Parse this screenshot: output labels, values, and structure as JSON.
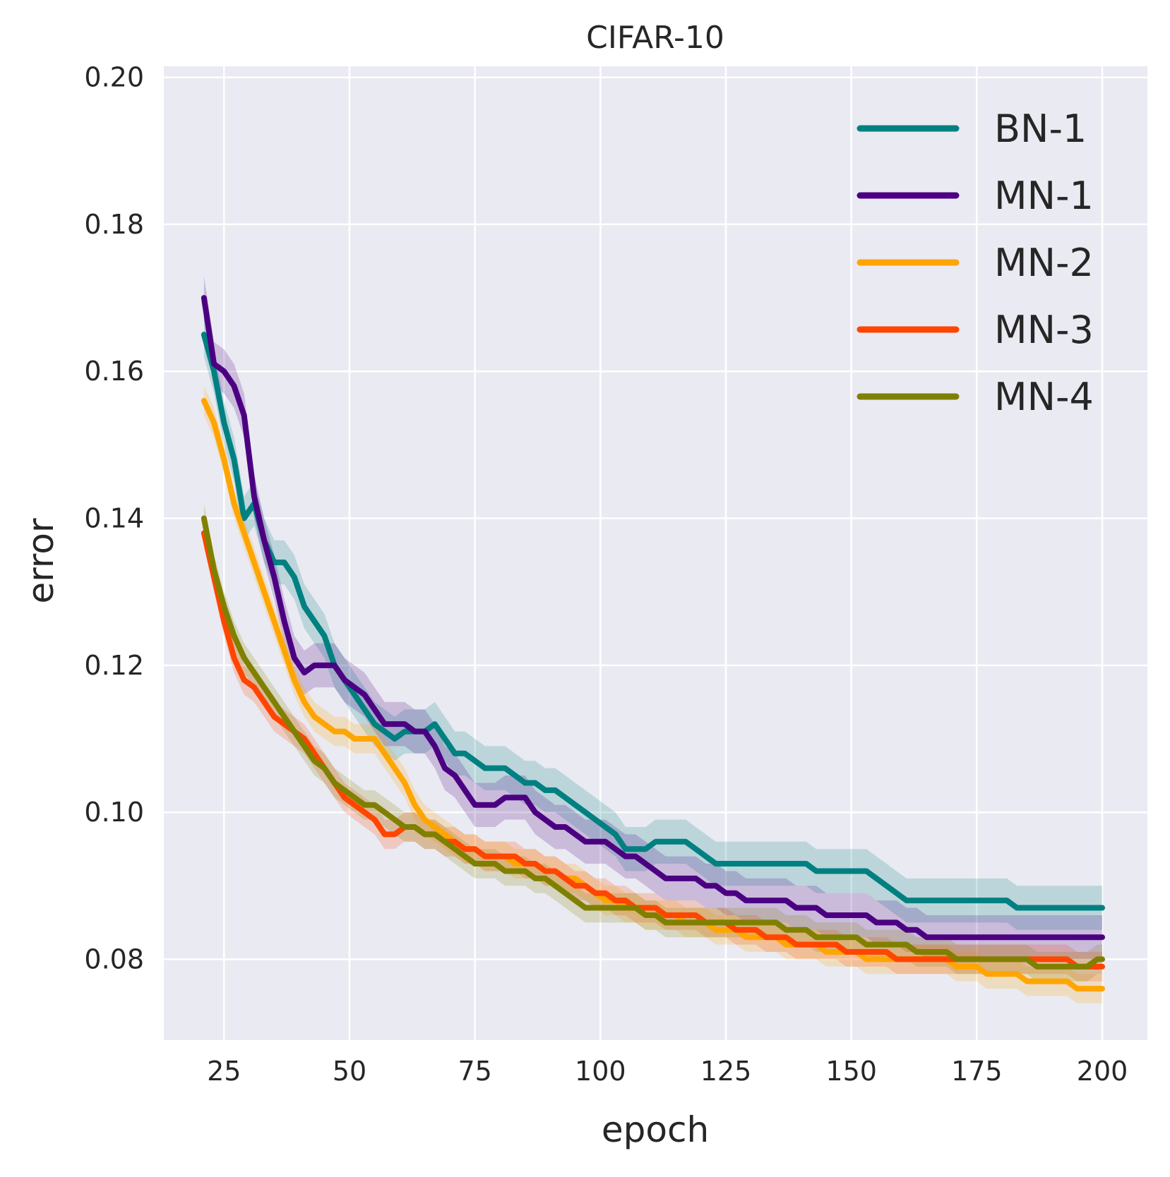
{
  "chart_data": {
    "type": "line",
    "title": "CIFAR-10",
    "xlabel": "epoch",
    "ylabel": "error",
    "xlim": [
      13,
      209
    ],
    "ylim": [
      0.069,
      0.2015
    ],
    "xticks": [
      25,
      50,
      75,
      100,
      125,
      150,
      175,
      200
    ],
    "xtick_labels": [
      "25",
      "50",
      "75",
      "100",
      "125",
      "150",
      "175",
      "200"
    ],
    "yticks": [
      0.08,
      0.1,
      0.12,
      0.14,
      0.16,
      0.18,
      0.2
    ],
    "ytick_labels": [
      "0.08",
      "0.10",
      "0.12",
      "0.14",
      "0.16",
      "0.18",
      "0.20"
    ],
    "grid": true,
    "legend_position": "top-right",
    "x": [
      21,
      23,
      25,
      27,
      29,
      31,
      33,
      35,
      37,
      39,
      41,
      43,
      45,
      47,
      49,
      51,
      53,
      55,
      57,
      59,
      61,
      63,
      65,
      67,
      69,
      71,
      73,
      75,
      77,
      79,
      81,
      83,
      85,
      87,
      89,
      91,
      93,
      95,
      97,
      99,
      101,
      103,
      105,
      107,
      109,
      111,
      113,
      115,
      117,
      119,
      121,
      123,
      125,
      127,
      129,
      131,
      133,
      135,
      137,
      139,
      141,
      143,
      145,
      147,
      149,
      151,
      153,
      155,
      157,
      159,
      161,
      163,
      165,
      167,
      169,
      171,
      173,
      175,
      177,
      179,
      181,
      183,
      185,
      187,
      189,
      191,
      193,
      195,
      197,
      199,
      200
    ],
    "series": [
      {
        "name": "BN-1",
        "color": "#008080",
        "band": 0.003,
        "values": [
          0.165,
          0.16,
          0.153,
          0.148,
          0.14,
          0.142,
          0.137,
          0.134,
          0.134,
          0.132,
          0.128,
          0.126,
          0.124,
          0.12,
          0.118,
          0.116,
          0.114,
          0.112,
          0.111,
          0.11,
          0.111,
          0.111,
          0.111,
          0.112,
          0.11,
          0.108,
          0.108,
          0.107,
          0.106,
          0.106,
          0.106,
          0.105,
          0.104,
          0.104,
          0.103,
          0.103,
          0.102,
          0.101,
          0.1,
          0.099,
          0.098,
          0.097,
          0.095,
          0.095,
          0.095,
          0.096,
          0.096,
          0.096,
          0.096,
          0.095,
          0.094,
          0.093,
          0.093,
          0.093,
          0.093,
          0.093,
          0.093,
          0.093,
          0.093,
          0.093,
          0.093,
          0.092,
          0.092,
          0.092,
          0.092,
          0.092,
          0.092,
          0.091,
          0.09,
          0.089,
          0.088,
          0.088,
          0.088,
          0.088,
          0.088,
          0.088,
          0.088,
          0.088,
          0.088,
          0.088,
          0.088,
          0.087,
          0.087,
          0.087,
          0.087,
          0.087,
          0.087,
          0.087,
          0.087,
          0.087,
          0.087
        ]
      },
      {
        "name": "MN-1",
        "color": "#4B0082",
        "band": 0.003,
        "values": [
          0.17,
          0.161,
          0.16,
          0.158,
          0.154,
          0.143,
          0.137,
          0.132,
          0.126,
          0.121,
          0.119,
          0.12,
          0.12,
          0.12,
          0.118,
          0.117,
          0.116,
          0.114,
          0.112,
          0.112,
          0.112,
          0.111,
          0.111,
          0.109,
          0.106,
          0.105,
          0.103,
          0.101,
          0.101,
          0.101,
          0.102,
          0.102,
          0.102,
          0.1,
          0.099,
          0.098,
          0.098,
          0.097,
          0.096,
          0.096,
          0.096,
          0.095,
          0.094,
          0.094,
          0.093,
          0.092,
          0.091,
          0.091,
          0.091,
          0.091,
          0.09,
          0.09,
          0.089,
          0.089,
          0.088,
          0.088,
          0.088,
          0.088,
          0.088,
          0.087,
          0.087,
          0.087,
          0.086,
          0.086,
          0.086,
          0.086,
          0.086,
          0.085,
          0.085,
          0.085,
          0.084,
          0.084,
          0.083,
          0.083,
          0.083,
          0.083,
          0.083,
          0.083,
          0.083,
          0.083,
          0.083,
          0.083,
          0.083,
          0.083,
          0.083,
          0.083,
          0.083,
          0.083,
          0.083,
          0.083,
          0.083
        ]
      },
      {
        "name": "MN-2",
        "color": "#FFA500",
        "band": 0.002,
        "values": [
          0.156,
          0.153,
          0.148,
          0.142,
          0.138,
          0.134,
          0.13,
          0.126,
          0.122,
          0.118,
          0.115,
          0.113,
          0.112,
          0.111,
          0.111,
          0.11,
          0.11,
          0.11,
          0.108,
          0.106,
          0.104,
          0.101,
          0.099,
          0.098,
          0.097,
          0.096,
          0.095,
          0.095,
          0.094,
          0.094,
          0.094,
          0.093,
          0.093,
          0.093,
          0.092,
          0.092,
          0.091,
          0.091,
          0.09,
          0.089,
          0.088,
          0.088,
          0.087,
          0.087,
          0.086,
          0.086,
          0.086,
          0.086,
          0.085,
          0.085,
          0.085,
          0.084,
          0.084,
          0.084,
          0.083,
          0.083,
          0.083,
          0.083,
          0.082,
          0.082,
          0.082,
          0.082,
          0.081,
          0.081,
          0.081,
          0.081,
          0.08,
          0.08,
          0.08,
          0.08,
          0.08,
          0.08,
          0.08,
          0.08,
          0.08,
          0.079,
          0.079,
          0.079,
          0.078,
          0.078,
          0.078,
          0.078,
          0.077,
          0.077,
          0.077,
          0.077,
          0.077,
          0.076,
          0.076,
          0.076,
          0.076
        ]
      },
      {
        "name": "MN-3",
        "color": "#FF4500",
        "band": 0.002,
        "values": [
          0.138,
          0.132,
          0.126,
          0.121,
          0.118,
          0.117,
          0.115,
          0.113,
          0.112,
          0.111,
          0.11,
          0.108,
          0.106,
          0.104,
          0.102,
          0.101,
          0.1,
          0.099,
          0.097,
          0.097,
          0.098,
          0.098,
          0.097,
          0.097,
          0.096,
          0.096,
          0.095,
          0.095,
          0.094,
          0.094,
          0.094,
          0.094,
          0.093,
          0.093,
          0.092,
          0.092,
          0.091,
          0.09,
          0.09,
          0.089,
          0.089,
          0.088,
          0.088,
          0.087,
          0.087,
          0.087,
          0.086,
          0.086,
          0.086,
          0.086,
          0.085,
          0.085,
          0.085,
          0.084,
          0.084,
          0.084,
          0.083,
          0.083,
          0.083,
          0.082,
          0.082,
          0.082,
          0.082,
          0.082,
          0.081,
          0.081,
          0.081,
          0.081,
          0.081,
          0.08,
          0.08,
          0.08,
          0.08,
          0.08,
          0.08,
          0.08,
          0.08,
          0.08,
          0.08,
          0.08,
          0.08,
          0.08,
          0.08,
          0.08,
          0.08,
          0.08,
          0.08,
          0.079,
          0.079,
          0.079,
          0.079
        ]
      },
      {
        "name": "MN-4",
        "color": "#808000",
        "band": 0.002,
        "values": [
          0.14,
          0.133,
          0.128,
          0.124,
          0.121,
          0.119,
          0.117,
          0.115,
          0.113,
          0.111,
          0.109,
          0.107,
          0.106,
          0.104,
          0.103,
          0.102,
          0.101,
          0.101,
          0.1,
          0.099,
          0.098,
          0.098,
          0.097,
          0.097,
          0.096,
          0.095,
          0.094,
          0.093,
          0.093,
          0.093,
          0.092,
          0.092,
          0.092,
          0.091,
          0.091,
          0.09,
          0.089,
          0.088,
          0.087,
          0.087,
          0.087,
          0.087,
          0.087,
          0.087,
          0.086,
          0.086,
          0.085,
          0.085,
          0.085,
          0.085,
          0.085,
          0.085,
          0.085,
          0.085,
          0.085,
          0.085,
          0.085,
          0.085,
          0.084,
          0.084,
          0.084,
          0.083,
          0.083,
          0.083,
          0.083,
          0.083,
          0.082,
          0.082,
          0.082,
          0.082,
          0.082,
          0.081,
          0.081,
          0.081,
          0.081,
          0.08,
          0.08,
          0.08,
          0.08,
          0.08,
          0.08,
          0.08,
          0.08,
          0.079,
          0.079,
          0.079,
          0.079,
          0.079,
          0.079,
          0.08,
          0.08
        ]
      }
    ]
  }
}
